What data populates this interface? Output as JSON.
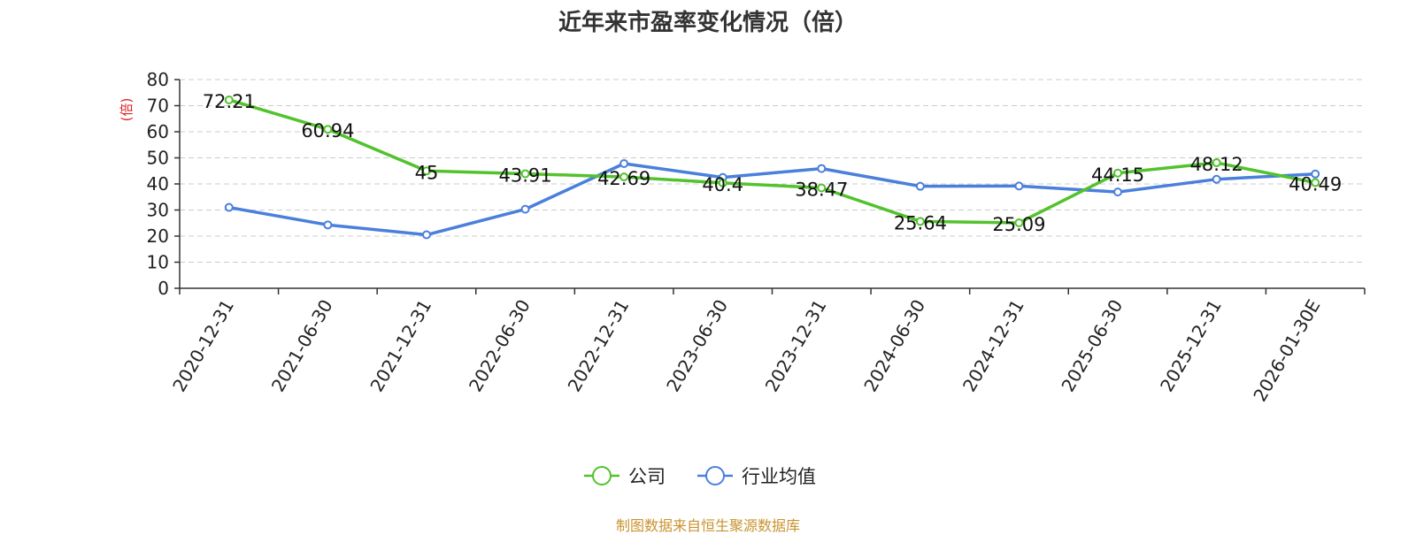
{
  "chart_data": {
    "type": "line",
    "title": "近年来市盈率变化情况（倍）",
    "ylabel": "(倍)",
    "xlabel": "",
    "ylim": [
      0,
      80
    ],
    "yticks": [
      0,
      10,
      20,
      30,
      40,
      50,
      60,
      70,
      80
    ],
    "grid": true,
    "legend_position": "bottom-center",
    "categories": [
      "2020-12-31",
      "2021-06-30",
      "2021-12-31",
      "2022-06-30",
      "2022-12-31",
      "2023-06-30",
      "2023-12-31",
      "2024-06-30",
      "2024-12-31",
      "2025-06-30",
      "2025-12-31",
      "2026-01-30E"
    ],
    "series": [
      {
        "name": "公司",
        "color": "#52c22d",
        "values": [
          72.21,
          60.94,
          45,
          43.91,
          42.69,
          40.4,
          38.47,
          25.64,
          25.09,
          44.15,
          48.12,
          40.49
        ],
        "labels": [
          "72.21",
          "60.94",
          "45",
          "43.91",
          "42.69",
          "40.4",
          "38.47",
          "25.64",
          "25.09",
          "44.15",
          "48.12",
          "40.49"
        ]
      },
      {
        "name": "行业均值",
        "color": "#4a7fdc",
        "values": [
          31.0,
          24.3,
          20.5,
          30.3,
          47.8,
          42.5,
          45.9,
          39.1,
          39.2,
          36.9,
          41.8,
          43.8
        ]
      }
    ]
  },
  "source_text": "制图数据来自恒生聚源数据库"
}
